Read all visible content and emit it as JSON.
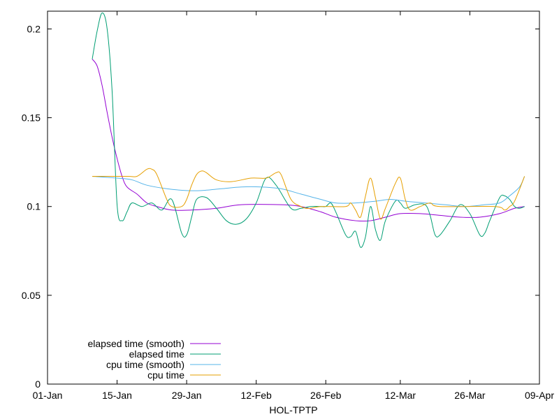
{
  "chart_data": {
    "type": "line",
    "title": "",
    "xlabel": "HOL-TPTP",
    "ylabel": "",
    "x_axis_kind": "date",
    "xlim": [
      "2024-01-01",
      "2024-04-09"
    ],
    "ylim": [
      0,
      0.21
    ],
    "x_ticks": [
      {
        "date": "2024-01-01",
        "label": "01-Jan"
      },
      {
        "date": "2024-01-15",
        "label": "15-Jan"
      },
      {
        "date": "2024-01-29",
        "label": "29-Jan"
      },
      {
        "date": "2024-02-12",
        "label": "12-Feb"
      },
      {
        "date": "2024-02-26",
        "label": "26-Feb"
      },
      {
        "date": "2024-03-12",
        "label": "12-Mar"
      },
      {
        "date": "2024-03-26",
        "label": "26-Mar"
      },
      {
        "date": "2024-04-09",
        "label": "09-Apr"
      }
    ],
    "y_ticks": [
      {
        "value": 0,
        "label": "0"
      },
      {
        "value": 0.05,
        "label": "0.05"
      },
      {
        "value": 0.1,
        "label": "0.1"
      },
      {
        "value": 0.15,
        "label": "0.15"
      },
      {
        "value": 0.2,
        "label": "0.2"
      }
    ],
    "grid": false,
    "legend_position": "bottom-left",
    "series": [
      {
        "name": "elapsed time (smooth)",
        "color": "#9400d3",
        "points": [
          [
            "2024-01-10",
            0.183
          ],
          [
            "2024-01-11",
            0.179
          ],
          [
            "2024-01-12",
            0.168
          ],
          [
            "2024-01-13",
            0.153
          ],
          [
            "2024-01-14",
            0.139
          ],
          [
            "2024-01-15",
            0.127
          ],
          [
            "2024-01-16",
            0.117
          ],
          [
            "2024-01-17",
            0.111
          ],
          [
            "2024-01-19",
            0.107
          ],
          [
            "2024-01-21",
            0.102
          ],
          [
            "2024-01-23",
            0.1
          ],
          [
            "2024-01-26",
            0.098
          ],
          [
            "2024-01-30",
            0.098
          ],
          [
            "2024-02-04",
            0.099
          ],
          [
            "2024-02-09",
            0.101
          ],
          [
            "2024-02-17",
            0.101
          ],
          [
            "2024-02-21",
            0.1
          ],
          [
            "2024-02-25",
            0.097
          ],
          [
            "2024-02-28",
            0.094
          ],
          [
            "2024-03-03",
            0.092
          ],
          [
            "2024-03-06",
            0.092
          ],
          [
            "2024-03-09",
            0.094
          ],
          [
            "2024-03-12",
            0.096
          ],
          [
            "2024-03-16",
            0.096
          ],
          [
            "2024-03-20",
            0.095
          ],
          [
            "2024-03-24",
            0.094
          ],
          [
            "2024-03-28",
            0.094
          ],
          [
            "2024-04-01",
            0.096
          ],
          [
            "2024-04-04",
            0.099
          ],
          [
            "2024-04-06",
            0.1
          ]
        ]
      },
      {
        "name": "elapsed time",
        "color": "#009e73",
        "points": [
          [
            "2024-01-10",
            0.183
          ],
          [
            "2024-01-11",
            0.199
          ],
          [
            "2024-01-12",
            0.209
          ],
          [
            "2024-01-13",
            0.2
          ],
          [
            "2024-01-14",
            0.165
          ],
          [
            "2024-01-15",
            0.101
          ],
          [
            "2024-01-16",
            0.092
          ],
          [
            "2024-01-17",
            0.097
          ],
          [
            "2024-01-18",
            0.102
          ],
          [
            "2024-01-20",
            0.1
          ],
          [
            "2024-01-22",
            0.102
          ],
          [
            "2024-01-24",
            0.098
          ],
          [
            "2024-01-26",
            0.104
          ],
          [
            "2024-01-28",
            0.085
          ],
          [
            "2024-01-29",
            0.084
          ],
          [
            "2024-01-30",
            0.094
          ],
          [
            "2024-01-31",
            0.104
          ],
          [
            "2024-02-02",
            0.105
          ],
          [
            "2024-02-04",
            0.099
          ],
          [
            "2024-02-06",
            0.092
          ],
          [
            "2024-02-08",
            0.09
          ],
          [
            "2024-02-10",
            0.093
          ],
          [
            "2024-02-12",
            0.102
          ],
          [
            "2024-02-14",
            0.116
          ],
          [
            "2024-02-16",
            0.112
          ],
          [
            "2024-02-19",
            0.099
          ],
          [
            "2024-02-21",
            0.099
          ],
          [
            "2024-02-23",
            0.1
          ],
          [
            "2024-02-25",
            0.1
          ],
          [
            "2024-02-26",
            0.1
          ],
          [
            "2024-02-27",
            0.102
          ],
          [
            "2024-02-28",
            0.097
          ],
          [
            "2024-03-01",
            0.084
          ],
          [
            "2024-03-02",
            0.083
          ],
          [
            "2024-03-03",
            0.086
          ],
          [
            "2024-03-04",
            0.077
          ],
          [
            "2024-03-05",
            0.083
          ],
          [
            "2024-03-06",
            0.1
          ],
          [
            "2024-03-07",
            0.087
          ],
          [
            "2024-03-08",
            0.081
          ],
          [
            "2024-03-09",
            0.092
          ],
          [
            "2024-03-11",
            0.103
          ],
          [
            "2024-03-12",
            0.102
          ],
          [
            "2024-03-13",
            0.099
          ],
          [
            "2024-03-15",
            0.101
          ],
          [
            "2024-03-17",
            0.101
          ],
          [
            "2024-03-18",
            0.095
          ],
          [
            "2024-03-19",
            0.084
          ],
          [
            "2024-03-20",
            0.084
          ],
          [
            "2024-03-22",
            0.092
          ],
          [
            "2024-03-24",
            0.101
          ],
          [
            "2024-03-26",
            0.096
          ],
          [
            "2024-03-28",
            0.084
          ],
          [
            "2024-03-29",
            0.085
          ],
          [
            "2024-03-30",
            0.092
          ],
          [
            "2024-04-01",
            0.105
          ],
          [
            "2024-04-02",
            0.106
          ],
          [
            "2024-04-03",
            0.104
          ],
          [
            "2024-04-04",
            0.1
          ],
          [
            "2024-04-05",
            0.099
          ],
          [
            "2024-04-06",
            0.1
          ]
        ]
      },
      {
        "name": "cpu time (smooth)",
        "color": "#56b4e9",
        "points": [
          [
            "2024-01-10",
            0.117
          ],
          [
            "2024-01-15",
            0.116
          ],
          [
            "2024-01-18",
            0.115
          ],
          [
            "2024-01-21",
            0.112
          ],
          [
            "2024-01-25",
            0.11
          ],
          [
            "2024-01-29",
            0.109
          ],
          [
            "2024-02-01",
            0.109
          ],
          [
            "2024-02-05",
            0.11
          ],
          [
            "2024-02-09",
            0.111
          ],
          [
            "2024-02-13",
            0.111
          ],
          [
            "2024-02-17",
            0.11
          ],
          [
            "2024-02-21",
            0.107
          ],
          [
            "2024-02-25",
            0.104
          ],
          [
            "2024-02-28",
            0.102
          ],
          [
            "2024-03-03",
            0.102
          ],
          [
            "2024-03-07",
            0.103
          ],
          [
            "2024-03-10",
            0.104
          ],
          [
            "2024-03-13",
            0.103
          ],
          [
            "2024-03-17",
            0.102
          ],
          [
            "2024-03-21",
            0.101
          ],
          [
            "2024-03-25",
            0.1
          ],
          [
            "2024-03-29",
            0.101
          ],
          [
            "2024-04-01",
            0.102
          ],
          [
            "2024-04-03",
            0.106
          ],
          [
            "2024-04-05",
            0.111
          ],
          [
            "2024-04-06",
            0.117
          ]
        ]
      },
      {
        "name": "cpu time",
        "color": "#e69f00",
        "points": [
          [
            "2024-01-10",
            0.117
          ],
          [
            "2024-01-17",
            0.117
          ],
          [
            "2024-01-19",
            0.117
          ],
          [
            "2024-01-21",
            0.121
          ],
          [
            "2024-01-22",
            0.121
          ],
          [
            "2024-01-23",
            0.118
          ],
          [
            "2024-01-25",
            0.104
          ],
          [
            "2024-01-26",
            0.1
          ],
          [
            "2024-01-28",
            0.1
          ],
          [
            "2024-01-29",
            0.104
          ],
          [
            "2024-01-30",
            0.112
          ],
          [
            "2024-01-31",
            0.118
          ],
          [
            "2024-02-01",
            0.12
          ],
          [
            "2024-02-02",
            0.119
          ],
          [
            "2024-02-04",
            0.115
          ],
          [
            "2024-02-07",
            0.114
          ],
          [
            "2024-02-11",
            0.116
          ],
          [
            "2024-02-14",
            0.116
          ],
          [
            "2024-02-16",
            0.119
          ],
          [
            "2024-02-17",
            0.118
          ],
          [
            "2024-02-19",
            0.104
          ],
          [
            "2024-02-21",
            0.1
          ],
          [
            "2024-02-22",
            0.099
          ],
          [
            "2024-02-23",
            0.099
          ],
          [
            "2024-02-25",
            0.1
          ],
          [
            "2024-03-01",
            0.1
          ],
          [
            "2024-03-02",
            0.102
          ],
          [
            "2024-03-03",
            0.098
          ],
          [
            "2024-03-04",
            0.094
          ],
          [
            "2024-03-05",
            0.106
          ],
          [
            "2024-03-06",
            0.116
          ],
          [
            "2024-03-07",
            0.105
          ],
          [
            "2024-03-08",
            0.093
          ],
          [
            "2024-03-09",
            0.099
          ],
          [
            "2024-03-11",
            0.113
          ],
          [
            "2024-03-12",
            0.116
          ],
          [
            "2024-03-13",
            0.104
          ],
          [
            "2024-03-14",
            0.098
          ],
          [
            "2024-03-16",
            0.1
          ],
          [
            "2024-03-18",
            0.102
          ],
          [
            "2024-03-20",
            0.1
          ],
          [
            "2024-03-31",
            0.1
          ],
          [
            "2024-04-02",
            0.098
          ],
          [
            "2024-04-03",
            0.1
          ],
          [
            "2024-04-04",
            0.103
          ],
          [
            "2024-04-06",
            0.117
          ]
        ]
      }
    ]
  }
}
